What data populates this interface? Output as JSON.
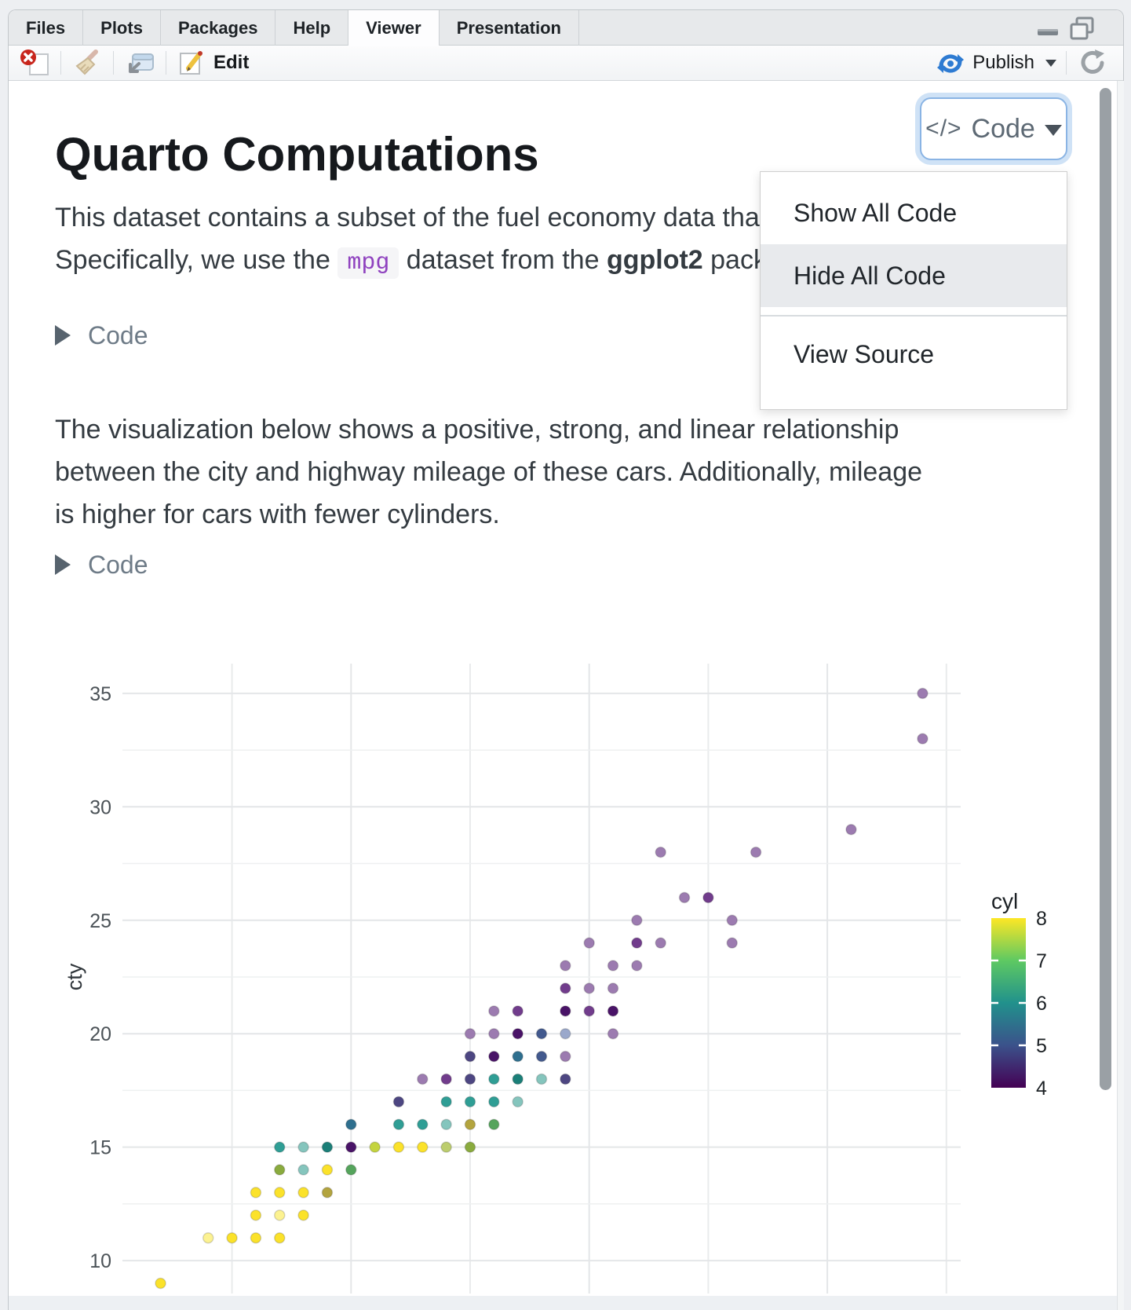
{
  "window": {
    "tabs": [
      {
        "label": "Files",
        "active": false
      },
      {
        "label": "Plots",
        "active": false
      },
      {
        "label": "Packages",
        "active": false
      },
      {
        "label": "Help",
        "active": false
      },
      {
        "label": "Viewer",
        "active": true
      },
      {
        "label": "Presentation",
        "active": false
      }
    ],
    "toolbar": {
      "edit_label": "Edit",
      "publish_label": "Publish"
    }
  },
  "document": {
    "title": "Quarto Computations",
    "code_menu_button": {
      "icon": "</>",
      "label": "Code"
    },
    "code_menu": {
      "items": [
        {
          "label": "Show All Code",
          "highlighted": false,
          "divider_before": false
        },
        {
          "label": "Hide All Code",
          "highlighted": true,
          "divider_before": false
        },
        {
          "label": "View Source",
          "highlighted": false,
          "divider_before": true
        }
      ]
    },
    "para1": {
      "line1": "This dataset contains a subset of the fuel economy data that the EPA makes available.",
      "line2_segments": [
        {
          "text": "Specifically, we use the ",
          "style": "plain"
        },
        {
          "text": "mpg",
          "style": "code"
        },
        {
          "text": " dataset from the ",
          "style": "plain"
        },
        {
          "text": "ggplot2",
          "style": "bold"
        },
        {
          "text": " package.",
          "style": "plain"
        }
      ]
    },
    "code_fold_label": "Code",
    "para2_lines": [
      "The visualization below shows a positive, strong, and linear relationship",
      "between the city and highway mileage of these cars. Additionally, mileage",
      "is higher for cars with fewer cylinders."
    ]
  },
  "chart_data": {
    "type": "scatter",
    "ylabel": "cty",
    "y_tick_labels": [
      35,
      30,
      25,
      20,
      15,
      10
    ],
    "y_minor_gridlines": [
      32.5,
      27.5,
      22.5,
      17.5,
      12.5
    ],
    "x_gridlines": [
      15,
      20,
      25,
      30,
      35,
      40,
      45
    ],
    "x_major_gridlines": [
      20,
      30,
      40
    ],
    "axis": {
      "x_domain": [
        10.4,
        45.6
      ],
      "y_domain": [
        8.55,
        36.31
      ]
    },
    "grid": true,
    "legend": {
      "title": "cyl",
      "position": "right",
      "tick_labels": [
        8,
        7,
        6,
        5,
        4
      ],
      "white_tick_marks": [
        7,
        6,
        5
      ],
      "gradient_stops": [
        [
          "0%",
          "#fde725"
        ],
        [
          "25%",
          "#5ec962"
        ],
        [
          "50%",
          "#21918c"
        ],
        [
          "75%",
          "#3b528b"
        ],
        [
          "100%",
          "#440154"
        ]
      ]
    },
    "palette": {
      "p4": "#9c7bb0",
      "p4x2": "#713c8c",
      "p4x3": "#491367",
      "p5": "#9aa8cb",
      "p5x2": "#42598e",
      "p45": "#4d4682",
      "p56": "#2e6f8e",
      "p6": "#85c5bd",
      "p6x2": "#2f9e95",
      "p6x3": "#1b7f78",
      "p68": "#b3a43e",
      "p78g": "#55a45c",
      "p8yg": "#c4d43f",
      "p8ygl": "#bccd6e",
      "p8og": "#8aab3e",
      "p8l": "#fcf291",
      "p8": "#fbe22a"
    },
    "points_format": [
      "hwy",
      "cty",
      "color_key"
    ],
    "points": [
      [
        44,
        35,
        "p4"
      ],
      [
        44,
        33,
        "p4"
      ],
      [
        41,
        29,
        "p4"
      ],
      [
        33,
        28,
        "p4"
      ],
      [
        37,
        28,
        "p4"
      ],
      [
        34,
        26,
        "p4"
      ],
      [
        35,
        26,
        "p4x2"
      ],
      [
        32,
        25,
        "p4"
      ],
      [
        36,
        25,
        "p4"
      ],
      [
        30,
        24,
        "p4"
      ],
      [
        32,
        24,
        "p4x2"
      ],
      [
        33,
        24,
        "p4"
      ],
      [
        36,
        24,
        "p4"
      ],
      [
        29,
        23,
        "p4"
      ],
      [
        31,
        23,
        "p4"
      ],
      [
        32,
        23,
        "p4"
      ],
      [
        29,
        22,
        "p4x2"
      ],
      [
        30,
        22,
        "p4"
      ],
      [
        31,
        22,
        "p4"
      ],
      [
        26,
        21,
        "p4"
      ],
      [
        27,
        21,
        "p4x2"
      ],
      [
        29,
        21,
        "p4x3"
      ],
      [
        30,
        21,
        "p4x2"
      ],
      [
        31,
        21,
        "p4x3"
      ],
      [
        25,
        20,
        "p4"
      ],
      [
        26,
        20,
        "p4"
      ],
      [
        27,
        20,
        "p4x3"
      ],
      [
        28,
        20,
        "p5x2"
      ],
      [
        29,
        20,
        "p5"
      ],
      [
        31,
        20,
        "p4"
      ],
      [
        25,
        19,
        "p45"
      ],
      [
        26,
        19,
        "p4x3"
      ],
      [
        27,
        19,
        "p56"
      ],
      [
        28,
        19,
        "p5x2"
      ],
      [
        29,
        19,
        "p4"
      ],
      [
        23,
        18,
        "p4"
      ],
      [
        24,
        18,
        "p4x2"
      ],
      [
        25,
        18,
        "p45"
      ],
      [
        26,
        18,
        "p6x2"
      ],
      [
        27,
        18,
        "p6x3"
      ],
      [
        28,
        18,
        "p6"
      ],
      [
        29,
        18,
        "p45"
      ],
      [
        22,
        17,
        "p45"
      ],
      [
        24,
        17,
        "p6x2"
      ],
      [
        25,
        17,
        "p6x2"
      ],
      [
        26,
        17,
        "p6x2"
      ],
      [
        27,
        17,
        "p6"
      ],
      [
        20,
        16,
        "p56"
      ],
      [
        22,
        16,
        "p6x2"
      ],
      [
        23,
        16,
        "p6x2"
      ],
      [
        24,
        16,
        "p6"
      ],
      [
        25,
        16,
        "p68"
      ],
      [
        26,
        16,
        "p78g"
      ],
      [
        17,
        15,
        "p6x2"
      ],
      [
        18,
        15,
        "p6"
      ],
      [
        19,
        15,
        "p6x3"
      ],
      [
        20,
        15,
        "p4x3"
      ],
      [
        21,
        15,
        "p8yg"
      ],
      [
        22,
        15,
        "p8"
      ],
      [
        23,
        15,
        "p8"
      ],
      [
        24,
        15,
        "p8ygl"
      ],
      [
        25,
        15,
        "p8og"
      ],
      [
        17,
        14,
        "p8og"
      ],
      [
        18,
        14,
        "p6"
      ],
      [
        19,
        14,
        "p8"
      ],
      [
        20,
        14,
        "p78g"
      ],
      [
        16,
        13,
        "p8"
      ],
      [
        17,
        13,
        "p8"
      ],
      [
        18,
        13,
        "p8"
      ],
      [
        19,
        13,
        "p68"
      ],
      [
        16,
        12,
        "p8"
      ],
      [
        17,
        12,
        "p8l"
      ],
      [
        18,
        12,
        "p8"
      ],
      [
        14,
        11,
        "p8l"
      ],
      [
        15,
        11,
        "p8"
      ],
      [
        16,
        11,
        "p8"
      ],
      [
        17,
        11,
        "p8"
      ],
      [
        12,
        9,
        "p8"
      ]
    ]
  }
}
